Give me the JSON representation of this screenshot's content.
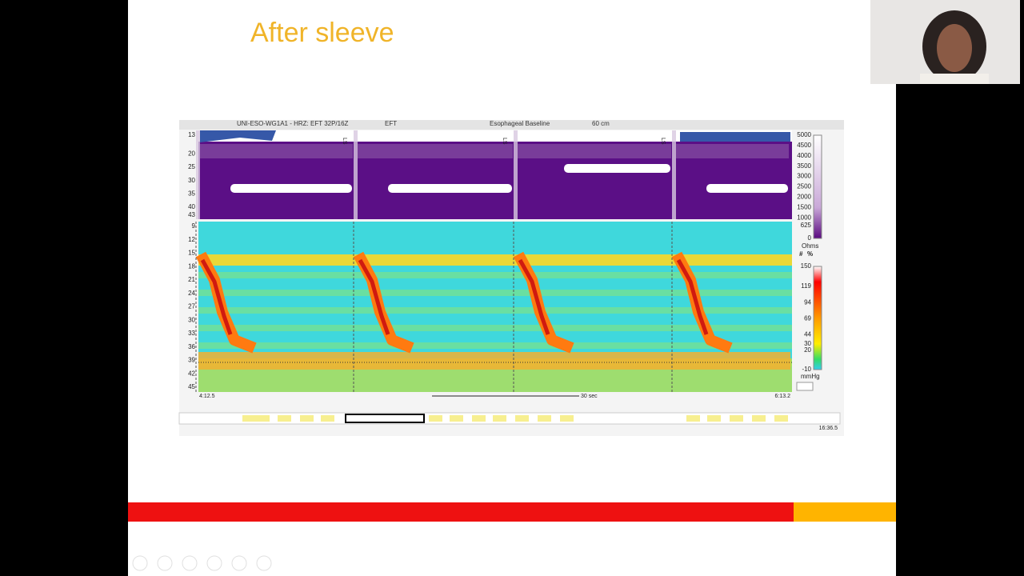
{
  "slide": {
    "title": "After sleeve"
  },
  "viewer": {
    "toolbar": [
      "UNI-ESO-WG1A1 - HRZ: EFT 32P/16Z",
      "EFT",
      "Esophageal Baseline",
      "60 cm"
    ],
    "impedance_sensors": [
      13,
      20,
      25,
      30,
      35,
      40,
      43
    ],
    "pressure_sensors": [
      9,
      12,
      15,
      18,
      21,
      24,
      27,
      30,
      33,
      36,
      39,
      42,
      45
    ],
    "impedance_scale": {
      "ticks": [
        5000,
        4500,
        4000,
        3500,
        3000,
        2500,
        2000,
        1500,
        1000,
        625,
        0
      ],
      "unit": "Ohms"
    },
    "scale_buttons": [
      "#",
      "%"
    ],
    "pressure_scale": {
      "ticks": [
        150,
        119,
        94,
        69,
        44,
        30,
        20,
        -10
      ],
      "unit": "mmHg",
      "input": "0"
    },
    "swallow_marks": [
      "LS",
      "LS",
      "LS"
    ],
    "time": {
      "start": "4:12.5",
      "scale": "30 sec",
      "end": "6:13.2",
      "total": "16:36.5"
    }
  }
}
